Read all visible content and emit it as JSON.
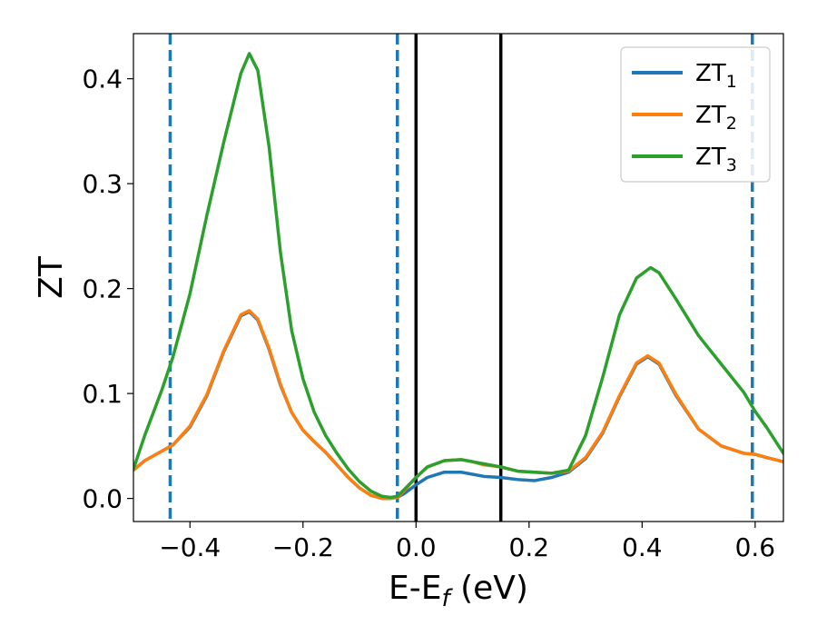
{
  "chart_data": {
    "type": "line",
    "xlabel": "E-E_f (eV)",
    "ylabel": "ZT",
    "xlim": [
      -0.5,
      0.65
    ],
    "ylim": [
      -0.022,
      0.443
    ],
    "x_ticks": [
      -0.4,
      -0.2,
      0.0,
      0.2,
      0.4,
      0.6
    ],
    "x_tick_labels": [
      "−0.4",
      "−0.2",
      "0.0",
      "0.2",
      "0.4",
      "0.6"
    ],
    "y_ticks": [
      0.0,
      0.1,
      0.2,
      0.3,
      0.4
    ],
    "y_tick_labels": [
      "0.0",
      "0.1",
      "0.2",
      "0.3",
      "0.4"
    ],
    "legend_position": "top-right",
    "legend": [
      {
        "base": "ZT",
        "sub": "1"
      },
      {
        "base": "ZT",
        "sub": "2"
      },
      {
        "base": "ZT",
        "sub": "3"
      }
    ],
    "vlines": [
      {
        "x": -0.435,
        "style": "dashed",
        "color": "#1f77b4"
      },
      {
        "x": -0.033,
        "style": "dashed",
        "color": "#1f77b4"
      },
      {
        "x": 0.0,
        "style": "solid",
        "color": "#000000"
      },
      {
        "x": 0.15,
        "style": "solid",
        "color": "#000000"
      },
      {
        "x": 0.595,
        "style": "dashed",
        "color": "#1f77b4"
      }
    ],
    "series": [
      {
        "name": "ZT1",
        "color": "#1f77b4",
        "x": [
          -0.5,
          -0.48,
          -0.45,
          -0.43,
          -0.4,
          -0.37,
          -0.34,
          -0.31,
          -0.295,
          -0.28,
          -0.26,
          -0.24,
          -0.22,
          -0.2,
          -0.18,
          -0.16,
          -0.14,
          -0.12,
          -0.1,
          -0.08,
          -0.06,
          -0.045,
          -0.033,
          -0.02,
          0.0,
          0.02,
          0.05,
          0.08,
          0.1,
          0.12,
          0.15,
          0.18,
          0.21,
          0.24,
          0.27,
          0.3,
          0.33,
          0.36,
          0.39,
          0.41,
          0.43,
          0.46,
          0.5,
          0.54,
          0.58,
          0.6,
          0.62,
          0.65
        ],
        "y": [
          0.027,
          0.036,
          0.045,
          0.051,
          0.068,
          0.098,
          0.14,
          0.174,
          0.178,
          0.17,
          0.142,
          0.108,
          0.082,
          0.065,
          0.054,
          0.044,
          0.032,
          0.02,
          0.01,
          0.003,
          0.0,
          0.0,
          0.001,
          0.005,
          0.013,
          0.02,
          0.025,
          0.025,
          0.023,
          0.021,
          0.02,
          0.018,
          0.017,
          0.02,
          0.025,
          0.038,
          0.062,
          0.097,
          0.128,
          0.135,
          0.128,
          0.098,
          0.066,
          0.05,
          0.043,
          0.042,
          0.039,
          0.035
        ]
      },
      {
        "name": "ZT2",
        "color": "#ff7f0e",
        "x": [
          -0.5,
          -0.48,
          -0.45,
          -0.43,
          -0.4,
          -0.37,
          -0.34,
          -0.31,
          -0.295,
          -0.28,
          -0.26,
          -0.24,
          -0.22,
          -0.2,
          -0.18,
          -0.16,
          -0.14,
          -0.12,
          -0.1,
          -0.08,
          -0.06,
          -0.045,
          -0.033,
          -0.02,
          0.0,
          0.02,
          0.05,
          0.08,
          0.1,
          0.12,
          0.15,
          0.18,
          0.21,
          0.24,
          0.27,
          0.3,
          0.33,
          0.36,
          0.39,
          0.41,
          0.43,
          0.46,
          0.5,
          0.54,
          0.58,
          0.6,
          0.62,
          0.65
        ],
        "y": [
          0.027,
          0.036,
          0.045,
          0.051,
          0.069,
          0.099,
          0.141,
          0.175,
          0.179,
          0.171,
          0.143,
          0.109,
          0.082,
          0.065,
          0.054,
          0.044,
          0.032,
          0.02,
          0.01,
          0.003,
          0.0,
          0.0,
          0.001,
          0.008,
          0.02,
          0.03,
          0.036,
          0.037,
          0.035,
          0.032,
          0.03,
          0.026,
          0.025,
          0.024,
          0.026,
          0.039,
          0.063,
          0.098,
          0.129,
          0.136,
          0.129,
          0.099,
          0.066,
          0.05,
          0.043,
          0.042,
          0.039,
          0.035
        ]
      },
      {
        "name": "ZT3",
        "color": "#2ca02c",
        "x": [
          -0.5,
          -0.48,
          -0.45,
          -0.43,
          -0.4,
          -0.37,
          -0.34,
          -0.31,
          -0.295,
          -0.28,
          -0.26,
          -0.24,
          -0.22,
          -0.2,
          -0.18,
          -0.16,
          -0.14,
          -0.12,
          -0.1,
          -0.08,
          -0.06,
          -0.045,
          -0.033,
          -0.02,
          0.0,
          0.02,
          0.05,
          0.08,
          0.1,
          0.12,
          0.15,
          0.18,
          0.21,
          0.24,
          0.27,
          0.3,
          0.33,
          0.36,
          0.39,
          0.415,
          0.43,
          0.46,
          0.5,
          0.54,
          0.58,
          0.6,
          0.62,
          0.65
        ],
        "y": [
          0.028,
          0.06,
          0.103,
          0.135,
          0.195,
          0.27,
          0.34,
          0.405,
          0.424,
          0.408,
          0.335,
          0.235,
          0.16,
          0.114,
          0.082,
          0.06,
          0.043,
          0.028,
          0.016,
          0.007,
          0.002,
          0.001,
          0.002,
          0.009,
          0.02,
          0.03,
          0.036,
          0.037,
          0.035,
          0.033,
          0.03,
          0.026,
          0.025,
          0.024,
          0.027,
          0.06,
          0.115,
          0.175,
          0.21,
          0.22,
          0.215,
          0.19,
          0.155,
          0.128,
          0.101,
          0.083,
          0.068,
          0.043
        ]
      }
    ]
  }
}
